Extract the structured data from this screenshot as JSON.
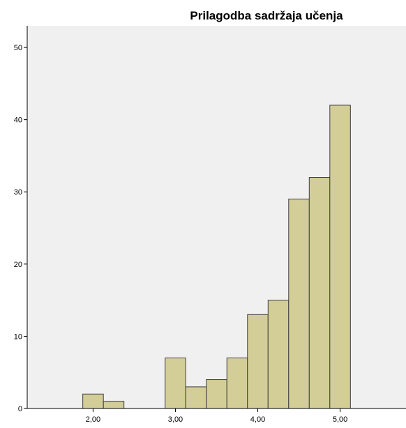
{
  "chart_data": {
    "type": "bar",
    "title": "Prilagodba sadržaja učenja",
    "xlabel": "",
    "ylabel": "",
    "bin_width": 0.25,
    "bins": [
      {
        "start": 1.875,
        "end": 2.125,
        "count": 2
      },
      {
        "start": 2.125,
        "end": 2.375,
        "count": 1
      },
      {
        "start": 2.875,
        "end": 3.125,
        "count": 7
      },
      {
        "start": 3.125,
        "end": 3.375,
        "count": 3
      },
      {
        "start": 3.375,
        "end": 3.625,
        "count": 4
      },
      {
        "start": 3.625,
        "end": 3.875,
        "count": 7
      },
      {
        "start": 3.875,
        "end": 4.125,
        "count": 13
      },
      {
        "start": 4.125,
        "end": 4.375,
        "count": 15
      },
      {
        "start": 4.375,
        "end": 4.625,
        "count": 29
      },
      {
        "start": 4.625,
        "end": 4.875,
        "count": 32
      },
      {
        "start": 4.875,
        "end": 5.125,
        "count": 42
      }
    ],
    "x_ticks": [
      "2,00",
      "3,00",
      "4,00",
      "5,00"
    ],
    "x_tick_values": [
      2,
      3,
      4,
      5
    ],
    "y_ticks": [
      "0",
      "10",
      "20",
      "30",
      "40",
      "50"
    ],
    "y_tick_values": [
      0,
      10,
      20,
      30,
      40,
      50
    ],
    "xlim": [
      1.2,
      5.8
    ],
    "ylim": [
      0,
      53
    ],
    "grid": false,
    "legend": "none"
  },
  "colors": {
    "bar_fill": "#d3ce97",
    "bar_stroke": "#3c3c3c",
    "plot_background": "#f0f0f0",
    "axis": "#000000"
  }
}
